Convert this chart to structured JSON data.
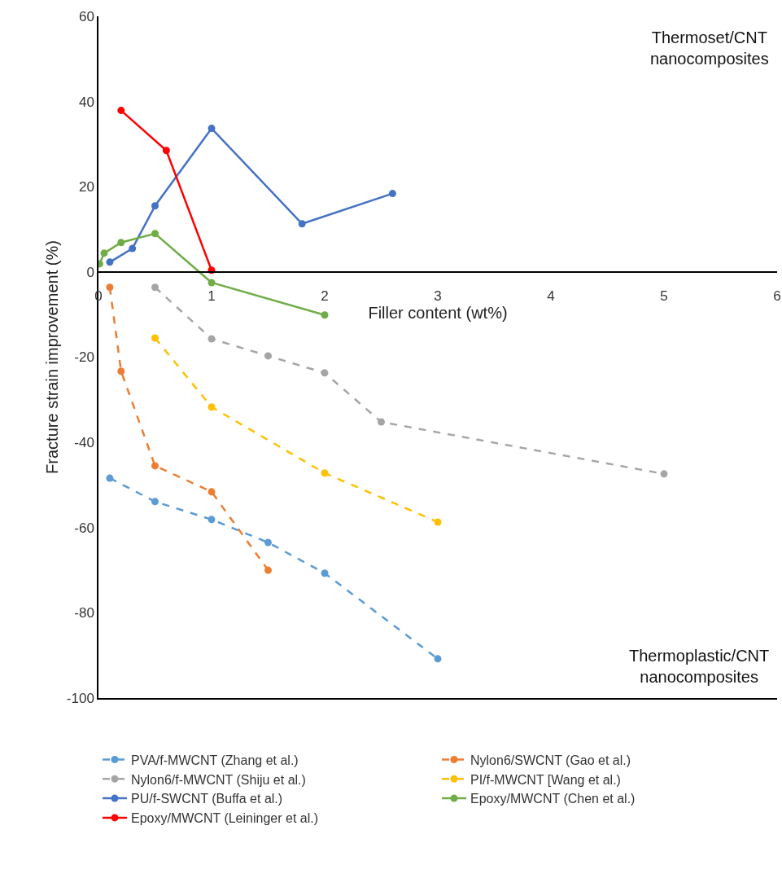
{
  "chart_data": {
    "type": "line",
    "xlabel": "Filler content (wt%)",
    "ylabel": "Fracture strain improvement (%)",
    "xlim": [
      0,
      6
    ],
    "xticks": [
      0,
      1,
      2,
      3,
      4,
      5,
      6
    ],
    "ylim": [
      -100,
      60
    ],
    "yticks": [
      -100,
      -80,
      -60,
      -40,
      -20,
      0,
      20,
      40,
      60
    ],
    "grid": false,
    "legend": "bottom",
    "marker": "circle",
    "annotations": [
      "Thermoset/CNT\nnanocomposites",
      "Thermoplastic/CNT\nnanocomposites"
    ],
    "series": [
      {
        "name": "PVA/f-MWCNT (Zhang et al.)",
        "color": "#5b9bd5",
        "line_style": "dashed",
        "x": [
          0.1,
          0.5,
          1,
          1.5,
          2,
          3
        ],
        "values": [
          -48.4,
          -53.9,
          -58.1,
          -63.5,
          -70.7,
          -90.8
        ]
      },
      {
        "name": "Nylon6/SWCNT (Gao et al.)",
        "color": "#ed7d31",
        "line_style": "dashed",
        "x": [
          0.1,
          0.2,
          0.5,
          1,
          1.5
        ],
        "values": [
          -3.6,
          -23.3,
          -45.5,
          -51.6,
          -70
        ]
      },
      {
        "name": "Nylon6/f-MWCNT (Shiju et al.)",
        "color": "#a5a5a5",
        "line_style": "dashed",
        "x": [
          0.5,
          1,
          1.5,
          2,
          2.5,
          5
        ],
        "values": [
          -3.6,
          -15.7,
          -19.7,
          -23.7,
          -35.2,
          -47.4
        ]
      },
      {
        "name": "PI/f-MWCNT [Wang et al.)",
        "color": "#ffc000",
        "line_style": "dashed",
        "x": [
          0.5,
          1,
          2,
          3
        ],
        "values": [
          -15.5,
          -31.7,
          -47.2,
          -58.7
        ]
      },
      {
        "name": "PU/f-SWCNT (Buffa et al.)",
        "color": "#4472c4",
        "line_style": "solid",
        "x": [
          0.1,
          0.3,
          0.5,
          1,
          1.8,
          2.6
        ],
        "values": [
          2.3,
          5.5,
          15.5,
          33.7,
          11.3,
          18.4
        ]
      },
      {
        "name": "Epoxy/MWCNT (Chen et al.)",
        "color": "#70ad47",
        "line_style": "solid",
        "x": [
          0.01,
          0.05,
          0.2,
          0.5,
          1,
          2
        ],
        "values": [
          1.9,
          4.4,
          6.9,
          9,
          -2.5,
          -10.1
        ]
      },
      {
        "name": "Epoxy/MWCNT (Leininger et al.)",
        "color": "#ff0000",
        "line_style": "solid",
        "x": [
          0.2,
          0.6,
          1
        ],
        "values": [
          37.9,
          28.5,
          0.4
        ]
      }
    ]
  }
}
